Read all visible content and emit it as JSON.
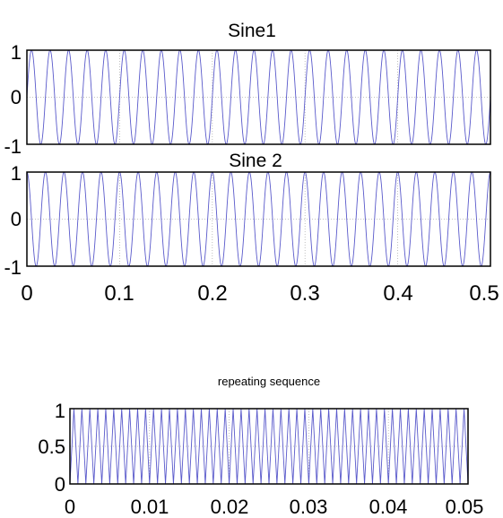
{
  "chart_data": [
    {
      "type": "line",
      "title": "Sine1",
      "xlim": [
        0,
        0.5
      ],
      "ylim": [
        -1,
        1
      ],
      "yticks": [
        "1",
        "0",
        "-1"
      ],
      "xticks": [],
      "grid": true,
      "series": [
        {
          "function": "sin",
          "amplitude": 1,
          "frequency_hz": 50,
          "color": "#5a5acb"
        }
      ]
    },
    {
      "type": "line",
      "title": "Sine 2",
      "xlim": [
        0,
        0.5
      ],
      "ylim": [
        -1,
        1
      ],
      "yticks": [
        "1",
        "0",
        "-1"
      ],
      "xticks": [
        "0",
        "0.1",
        "0.2",
        "0.3",
        "0.4",
        "0.5"
      ],
      "grid": true,
      "series": [
        {
          "function": "cos",
          "amplitude": 1,
          "frequency_hz": 50,
          "color": "#5a5acb"
        }
      ]
    },
    {
      "type": "line",
      "title": "repeating sequence",
      "xlim": [
        0,
        0.05
      ],
      "ylim": [
        0,
        1
      ],
      "yticks": [
        "1",
        "0.5",
        "0"
      ],
      "xticks": [
        "0",
        "0.01",
        "0.02",
        "0.03",
        "0.04",
        "0.05"
      ],
      "grid": true,
      "series": [
        {
          "function": "triangle",
          "min": 0,
          "max": 1,
          "frequency_hz": 1000,
          "color": "#5a5acb"
        }
      ]
    }
  ],
  "colors": {
    "line": "#5a5acb",
    "axes": "#000000",
    "grid": "#b0b0b0"
  }
}
